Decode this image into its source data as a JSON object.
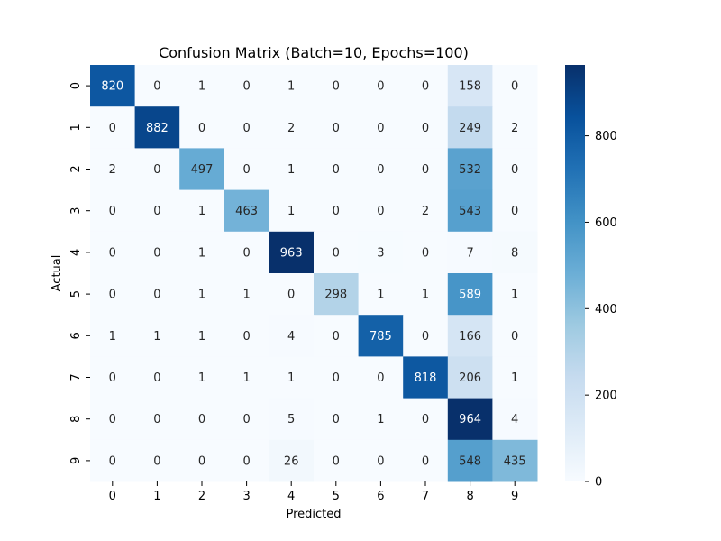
{
  "chart_data": {
    "type": "heatmap",
    "title": "Confusion Matrix (Batch=10, Epochs=100)",
    "xlabel": "Predicted",
    "ylabel": "Actual",
    "x_categories": [
      "0",
      "1",
      "2",
      "3",
      "4",
      "5",
      "6",
      "7",
      "8",
      "9"
    ],
    "y_categories": [
      "0",
      "1",
      "2",
      "3",
      "4",
      "5",
      "6",
      "7",
      "8",
      "9"
    ],
    "values": [
      [
        820,
        0,
        1,
        0,
        1,
        0,
        0,
        0,
        158,
        0
      ],
      [
        0,
        882,
        0,
        0,
        2,
        0,
        0,
        0,
        249,
        2
      ],
      [
        2,
        0,
        497,
        0,
        1,
        0,
        0,
        0,
        532,
        0
      ],
      [
        0,
        0,
        1,
        463,
        1,
        0,
        0,
        2,
        543,
        0
      ],
      [
        0,
        0,
        1,
        0,
        963,
        0,
        3,
        0,
        7,
        8
      ],
      [
        0,
        0,
        1,
        1,
        0,
        298,
        1,
        1,
        589,
        1
      ],
      [
        1,
        1,
        1,
        0,
        4,
        0,
        785,
        0,
        166,
        0
      ],
      [
        0,
        0,
        1,
        1,
        1,
        0,
        0,
        818,
        206,
        1
      ],
      [
        0,
        0,
        0,
        0,
        5,
        0,
        1,
        0,
        964,
        4
      ],
      [
        0,
        0,
        0,
        0,
        26,
        0,
        0,
        0,
        548,
        435
      ]
    ],
    "colormap": "Blues",
    "color_range": [
      0,
      964
    ],
    "colorbar_ticks": [
      0,
      200,
      400,
      600,
      800
    ],
    "annotations": true,
    "grid": false,
    "legend": "colorbar-right"
  }
}
